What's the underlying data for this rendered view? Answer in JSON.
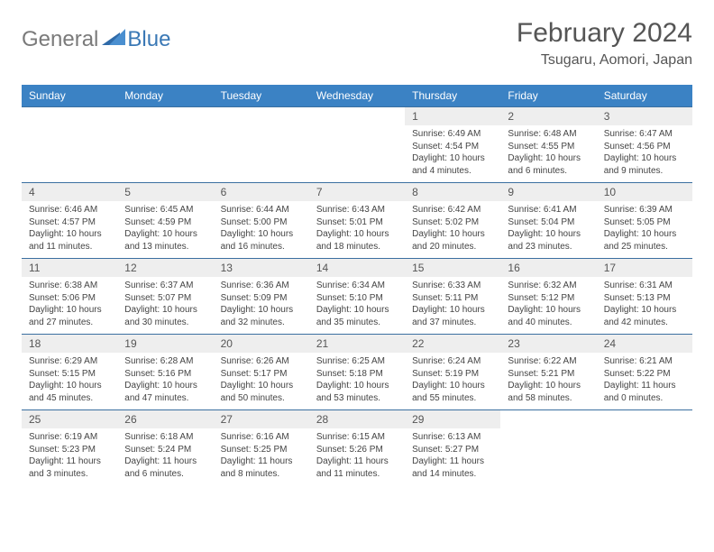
{
  "brand": {
    "general": "General",
    "blue": "Blue"
  },
  "title": "February 2024",
  "location": "Tsugaru, Aomori, Japan",
  "colors": {
    "header_bg": "#3b82c4",
    "header_text": "#ffffff",
    "daynum_bg": "#eeeeee",
    "rule": "#3b6fa0",
    "logo_gray": "#7a7a7a",
    "logo_blue": "#3a78b5"
  },
  "day_headers": [
    "Sunday",
    "Monday",
    "Tuesday",
    "Wednesday",
    "Thursday",
    "Friday",
    "Saturday"
  ],
  "weeks": [
    [
      null,
      null,
      null,
      null,
      {
        "n": "1",
        "sunrise": "Sunrise: 6:49 AM",
        "sunset": "Sunset: 4:54 PM",
        "day1": "Daylight: 10 hours",
        "day2": "and 4 minutes."
      },
      {
        "n": "2",
        "sunrise": "Sunrise: 6:48 AM",
        "sunset": "Sunset: 4:55 PM",
        "day1": "Daylight: 10 hours",
        "day2": "and 6 minutes."
      },
      {
        "n": "3",
        "sunrise": "Sunrise: 6:47 AM",
        "sunset": "Sunset: 4:56 PM",
        "day1": "Daylight: 10 hours",
        "day2": "and 9 minutes."
      }
    ],
    [
      {
        "n": "4",
        "sunrise": "Sunrise: 6:46 AM",
        "sunset": "Sunset: 4:57 PM",
        "day1": "Daylight: 10 hours",
        "day2": "and 11 minutes."
      },
      {
        "n": "5",
        "sunrise": "Sunrise: 6:45 AM",
        "sunset": "Sunset: 4:59 PM",
        "day1": "Daylight: 10 hours",
        "day2": "and 13 minutes."
      },
      {
        "n": "6",
        "sunrise": "Sunrise: 6:44 AM",
        "sunset": "Sunset: 5:00 PM",
        "day1": "Daylight: 10 hours",
        "day2": "and 16 minutes."
      },
      {
        "n": "7",
        "sunrise": "Sunrise: 6:43 AM",
        "sunset": "Sunset: 5:01 PM",
        "day1": "Daylight: 10 hours",
        "day2": "and 18 minutes."
      },
      {
        "n": "8",
        "sunrise": "Sunrise: 6:42 AM",
        "sunset": "Sunset: 5:02 PM",
        "day1": "Daylight: 10 hours",
        "day2": "and 20 minutes."
      },
      {
        "n": "9",
        "sunrise": "Sunrise: 6:41 AM",
        "sunset": "Sunset: 5:04 PM",
        "day1": "Daylight: 10 hours",
        "day2": "and 23 minutes."
      },
      {
        "n": "10",
        "sunrise": "Sunrise: 6:39 AM",
        "sunset": "Sunset: 5:05 PM",
        "day1": "Daylight: 10 hours",
        "day2": "and 25 minutes."
      }
    ],
    [
      {
        "n": "11",
        "sunrise": "Sunrise: 6:38 AM",
        "sunset": "Sunset: 5:06 PM",
        "day1": "Daylight: 10 hours",
        "day2": "and 27 minutes."
      },
      {
        "n": "12",
        "sunrise": "Sunrise: 6:37 AM",
        "sunset": "Sunset: 5:07 PM",
        "day1": "Daylight: 10 hours",
        "day2": "and 30 minutes."
      },
      {
        "n": "13",
        "sunrise": "Sunrise: 6:36 AM",
        "sunset": "Sunset: 5:09 PM",
        "day1": "Daylight: 10 hours",
        "day2": "and 32 minutes."
      },
      {
        "n": "14",
        "sunrise": "Sunrise: 6:34 AM",
        "sunset": "Sunset: 5:10 PM",
        "day1": "Daylight: 10 hours",
        "day2": "and 35 minutes."
      },
      {
        "n": "15",
        "sunrise": "Sunrise: 6:33 AM",
        "sunset": "Sunset: 5:11 PM",
        "day1": "Daylight: 10 hours",
        "day2": "and 37 minutes."
      },
      {
        "n": "16",
        "sunrise": "Sunrise: 6:32 AM",
        "sunset": "Sunset: 5:12 PM",
        "day1": "Daylight: 10 hours",
        "day2": "and 40 minutes."
      },
      {
        "n": "17",
        "sunrise": "Sunrise: 6:31 AM",
        "sunset": "Sunset: 5:13 PM",
        "day1": "Daylight: 10 hours",
        "day2": "and 42 minutes."
      }
    ],
    [
      {
        "n": "18",
        "sunrise": "Sunrise: 6:29 AM",
        "sunset": "Sunset: 5:15 PM",
        "day1": "Daylight: 10 hours",
        "day2": "and 45 minutes."
      },
      {
        "n": "19",
        "sunrise": "Sunrise: 6:28 AM",
        "sunset": "Sunset: 5:16 PM",
        "day1": "Daylight: 10 hours",
        "day2": "and 47 minutes."
      },
      {
        "n": "20",
        "sunrise": "Sunrise: 6:26 AM",
        "sunset": "Sunset: 5:17 PM",
        "day1": "Daylight: 10 hours",
        "day2": "and 50 minutes."
      },
      {
        "n": "21",
        "sunrise": "Sunrise: 6:25 AM",
        "sunset": "Sunset: 5:18 PM",
        "day1": "Daylight: 10 hours",
        "day2": "and 53 minutes."
      },
      {
        "n": "22",
        "sunrise": "Sunrise: 6:24 AM",
        "sunset": "Sunset: 5:19 PM",
        "day1": "Daylight: 10 hours",
        "day2": "and 55 minutes."
      },
      {
        "n": "23",
        "sunrise": "Sunrise: 6:22 AM",
        "sunset": "Sunset: 5:21 PM",
        "day1": "Daylight: 10 hours",
        "day2": "and 58 minutes."
      },
      {
        "n": "24",
        "sunrise": "Sunrise: 6:21 AM",
        "sunset": "Sunset: 5:22 PM",
        "day1": "Daylight: 11 hours",
        "day2": "and 0 minutes."
      }
    ],
    [
      {
        "n": "25",
        "sunrise": "Sunrise: 6:19 AM",
        "sunset": "Sunset: 5:23 PM",
        "day1": "Daylight: 11 hours",
        "day2": "and 3 minutes."
      },
      {
        "n": "26",
        "sunrise": "Sunrise: 6:18 AM",
        "sunset": "Sunset: 5:24 PM",
        "day1": "Daylight: 11 hours",
        "day2": "and 6 minutes."
      },
      {
        "n": "27",
        "sunrise": "Sunrise: 6:16 AM",
        "sunset": "Sunset: 5:25 PM",
        "day1": "Daylight: 11 hours",
        "day2": "and 8 minutes."
      },
      {
        "n": "28",
        "sunrise": "Sunrise: 6:15 AM",
        "sunset": "Sunset: 5:26 PM",
        "day1": "Daylight: 11 hours",
        "day2": "and 11 minutes."
      },
      {
        "n": "29",
        "sunrise": "Sunrise: 6:13 AM",
        "sunset": "Sunset: 5:27 PM",
        "day1": "Daylight: 11 hours",
        "day2": "and 14 minutes."
      },
      null,
      null
    ]
  ]
}
